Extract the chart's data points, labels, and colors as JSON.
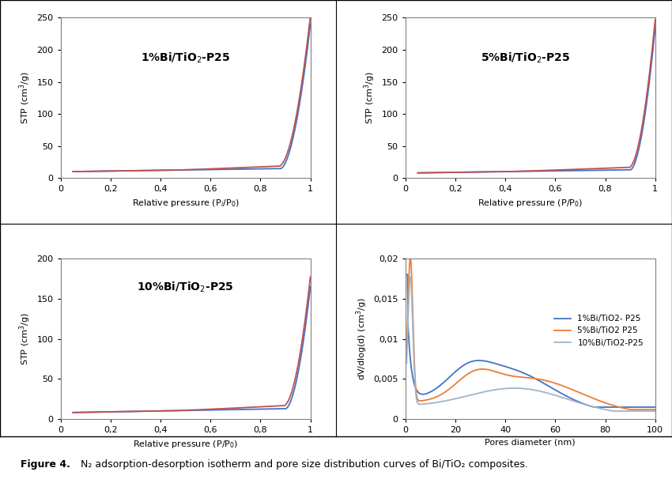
{
  "panel1_title": "1%Bi/TiO$_2$-P25",
  "panel2_title": "5%Bi/TiO$_2$-P25",
  "panel3_title": "10%Bi/TiO$_2$-P25",
  "stp_ylabel": "STP (cm$^3$/g)",
  "rp_xlabel_pi": "Relative pressure (P$_i$/P$_0$)",
  "rp_xlabel_p": "Relative pressure (P/P$_0$)",
  "rp_xlabel_p3": "Relative pressure (P/P$_0$)",
  "pore_xlabel": "Pores diameter (nm)",
  "pore_ylabel": "dV/dlog(d) (cm$^3$/g)",
  "adsorption_color": "#4472c4",
  "desorption_color": "#c0504d",
  "legend_labels": [
    "1%Bi/TiO2- P25",
    "5%Bi/TiO2 P25",
    "10%Bi/TiO2-P25"
  ],
  "legend_colors": [
    "#4472c4",
    "#ed7d31",
    "#a0b4c8"
  ],
  "panel1_ylim": [
    0,
    250
  ],
  "panel2_ylim": [
    0,
    250
  ],
  "panel3_ylim": [
    0,
    200
  ],
  "panel4_ylim": [
    0,
    0.02
  ],
  "fig_caption_bold": "Figure 4.",
  "fig_caption_rest": " N₂ adsorption-desorption isotherm and pore size distribution curves of Bi/TiO₂ composites.",
  "bg_color": "#ffffff"
}
